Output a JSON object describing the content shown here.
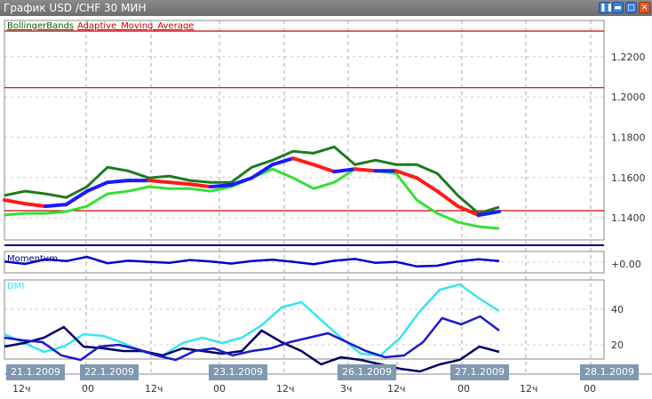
{
  "window": {
    "title": "График USD /CHF  30 МИН",
    "buttons": [
      "pause-icon",
      "minimize-icon",
      "maximize-icon",
      "close-icon"
    ]
  },
  "chart_data": [
    {
      "type": "line",
      "title": "",
      "legend": [
        {
          "text": "BollingerBands",
          "color": "#006400"
        },
        {
          "text": "Adaptive_Moving_Average",
          "color": "#cc0000"
        }
      ],
      "y_ticks": [
        "1.2200",
        "1.2000",
        "1.1800",
        "1.1600",
        "1.1400"
      ],
      "y_tick_values": [
        1.22,
        1.2,
        1.18,
        1.16,
        1.14
      ],
      "ylim": [
        1.129,
        1.238
      ],
      "horizontal_lines": [
        1.2327,
        1.2046,
        1.1435
      ],
      "series": [
        {
          "role": "upper-band",
          "color": "#1e7a1e",
          "values": [
            1.1511,
            1.1532,
            1.1519,
            1.1501,
            1.1554,
            1.1651,
            1.1633,
            1.1598,
            1.1607,
            1.1585,
            1.1576,
            1.1576,
            1.1651,
            1.1686,
            1.173,
            1.1721,
            1.1752,
            1.1664,
            1.1686,
            1.1664,
            1.1664,
            1.162,
            1.151,
            1.1422,
            1.1453
          ]
        },
        {
          "role": "lower-band",
          "color": "#33e033",
          "values": [
            1.1414,
            1.1422,
            1.1422,
            1.1431,
            1.1457,
            1.1519,
            1.1532,
            1.1554,
            1.1545,
            1.1545,
            1.1532,
            1.1554,
            1.1598,
            1.1642,
            1.1598,
            1.1545,
            1.1576,
            1.1642,
            1.1633,
            1.162,
            1.1488,
            1.1422,
            1.1378,
            1.1356,
            1.1347
          ]
        },
        {
          "role": "adaptive-moving-average",
          "color": "#1a1aff",
          "trend_down_color": "#ff1a1a",
          "values": [
            1.1488,
            1.147,
            1.1457,
            1.1466,
            1.1532,
            1.1576,
            1.1585,
            1.1585,
            1.1576,
            1.1567,
            1.1554,
            1.1563,
            1.1598,
            1.1664,
            1.1695,
            1.1664,
            1.1629,
            1.1642,
            1.1633,
            1.1633,
            1.1598,
            1.1532,
            1.1457,
            1.1413,
            1.1431
          ]
        }
      ]
    },
    {
      "type": "line",
      "label": "Momentum",
      "y_ticks": [
        "+0.00"
      ],
      "series": [
        {
          "color": "#0000cc",
          "values": [
            0.2,
            -0.5,
            0.8,
            0.3,
            1.5,
            -0.3,
            0.4,
            0.1,
            -0.2,
            0.6,
            0.2,
            -0.4,
            0.3,
            0.7,
            0.1,
            -0.6,
            0.4,
            0.9,
            -0.2,
            0.1,
            -1.2,
            -1.0,
            0.2,
            0.8,
            0.3
          ]
        }
      ],
      "ylim": [
        -3,
        3
      ]
    },
    {
      "type": "line",
      "label": "DMI",
      "y_ticks": [
        "40",
        "20"
      ],
      "y_tick_values": [
        40,
        20
      ],
      "ylim": [
        6,
        56
      ],
      "series": [
        {
          "color": "#33e6f0",
          "values": [
            26,
            21,
            16,
            19,
            26,
            25,
            21,
            16,
            14,
            21,
            24,
            21,
            24,
            31,
            41,
            44,
            34,
            24,
            15,
            14,
            24,
            39,
            51,
            54,
            46,
            39
          ]
        },
        {
          "color": "#000066",
          "values": [
            19,
            21,
            24,
            30,
            19,
            18,
            16.5,
            16.5,
            14,
            18,
            16.5,
            15,
            16.5,
            28,
            21.5,
            16.5,
            9,
            13,
            11.5,
            9,
            6.5,
            5,
            9,
            11.5,
            19,
            16
          ]
        },
        {
          "color": "#1a1acc",
          "values": [
            24,
            22.5,
            21.5,
            14,
            11.5,
            19,
            20,
            17.5,
            14,
            11.5,
            16.5,
            18,
            14,
            16.5,
            18,
            21.5,
            24,
            26.5,
            21.5,
            16.5,
            13,
            14,
            21.5,
            35,
            31.5,
            36,
            28
          ]
        }
      ]
    }
  ],
  "time_axis": {
    "dates": [
      "21.1.2009",
      "22.1.2009",
      "23.1.2009",
      "26.1.2009",
      "27.1.2009",
      "28.1.2009"
    ],
    "hours": [
      "12ч",
      "00",
      "12ч",
      "00",
      "12ч",
      "3ч",
      "12ч",
      "00",
      "12ч",
      "00"
    ]
  }
}
